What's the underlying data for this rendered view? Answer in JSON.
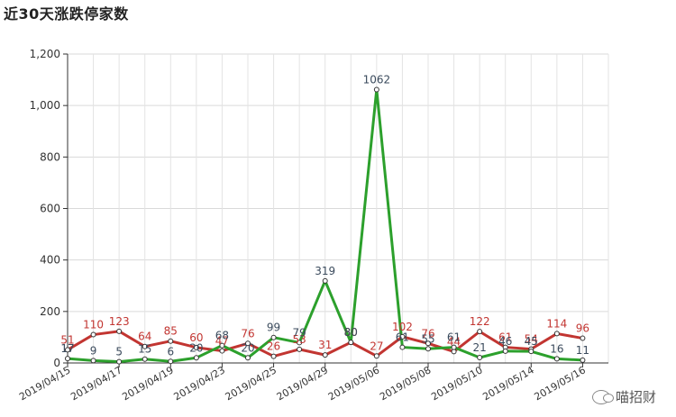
{
  "chart_data": {
    "type": "line",
    "title": "近30天涨跌停家数",
    "x": [
      "2019/04/15",
      "2019/04/16",
      "2019/04/17",
      "2019/04/18",
      "2019/04/19",
      "2019/04/22",
      "2019/04/23",
      "2019/04/24",
      "2019/04/25",
      "2019/04/26",
      "2019/04/29",
      "2019/04/30",
      "2019/05/06",
      "2019/05/07",
      "2019/05/08",
      "2019/05/09",
      "2019/05/10",
      "2019/05/13",
      "2019/05/14",
      "2019/05/15",
      "2019/05/16",
      "2019/05/17"
    ],
    "xtick_labels": [
      "2019/04/15",
      "2019/04/17",
      "2019/04/19",
      "2019/04/23",
      "2019/04/25",
      "2019/04/29",
      "2019/05/06",
      "2019/05/08",
      "2019/05/10",
      "2019/05/14",
      "2019/05/16"
    ],
    "yticks": [
      "0",
      "200",
      "400",
      "600",
      "800",
      "1,000",
      "1,200"
    ],
    "ylim": [
      0,
      1200
    ],
    "grid": true,
    "series": [
      {
        "color": "#c23531",
        "values": [
          51,
          110,
          123,
          64,
          85,
          60,
          47,
          76,
          26,
          53,
          31,
          80,
          27,
          102,
          76,
          44,
          122,
          61,
          54,
          114,
          96,
          null
        ]
      },
      {
        "color": "#2ca02c",
        "values": [
          17,
          9,
          5,
          15,
          6,
          20,
          68,
          20,
          99,
          79,
          319,
          80,
          1062,
          61,
          55,
          61,
          21,
          46,
          45,
          16,
          11,
          null
        ]
      }
    ]
  },
  "watermark": {
    "icon": "wechat-icon",
    "text": "喵招财"
  }
}
